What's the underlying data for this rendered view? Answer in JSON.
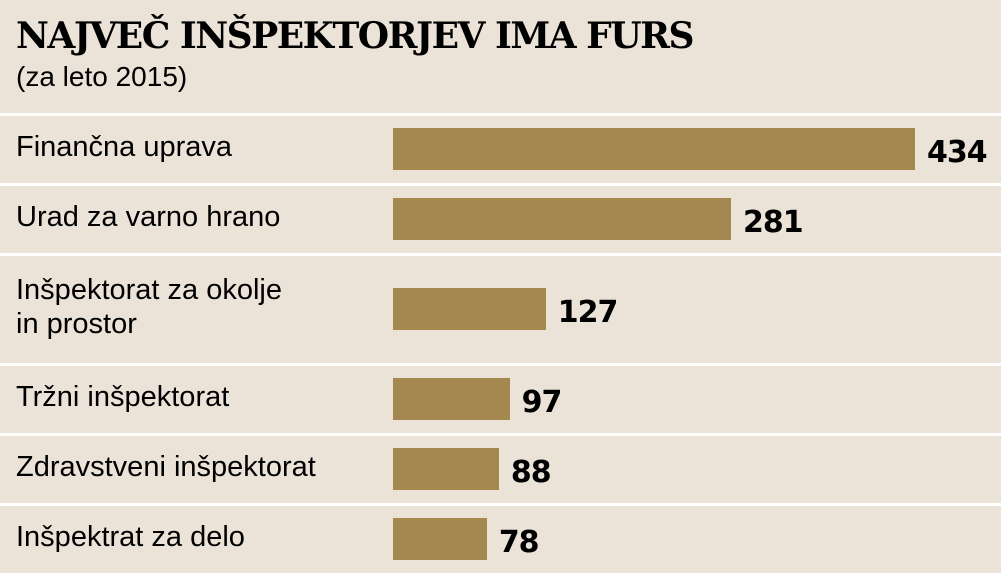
{
  "chart_data": {
    "type": "bar",
    "orientation": "horizontal",
    "title": "NAJVEČ INŠPEKTORJEV IMA FURS",
    "subtitle": "(za leto 2015)",
    "categories": [
      "Finančna uprava",
      "Urad za varno hrano",
      "Inšpektorat za okolje\nin prostor",
      "Tržni inšpektorat",
      "Zdravstveni inšpektorat",
      "Inšpektrat za delo"
    ],
    "values": [
      434,
      281,
      127,
      97,
      88,
      78
    ],
    "value_labels": [
      "434",
      "281",
      "127",
      "97",
      "88",
      "78"
    ],
    "xlim": [
      0,
      434
    ],
    "grid": false,
    "legend": "none",
    "colors": {
      "bar": "#a5884f",
      "background": "#ebe3d8",
      "divider": "#ffffff"
    }
  }
}
